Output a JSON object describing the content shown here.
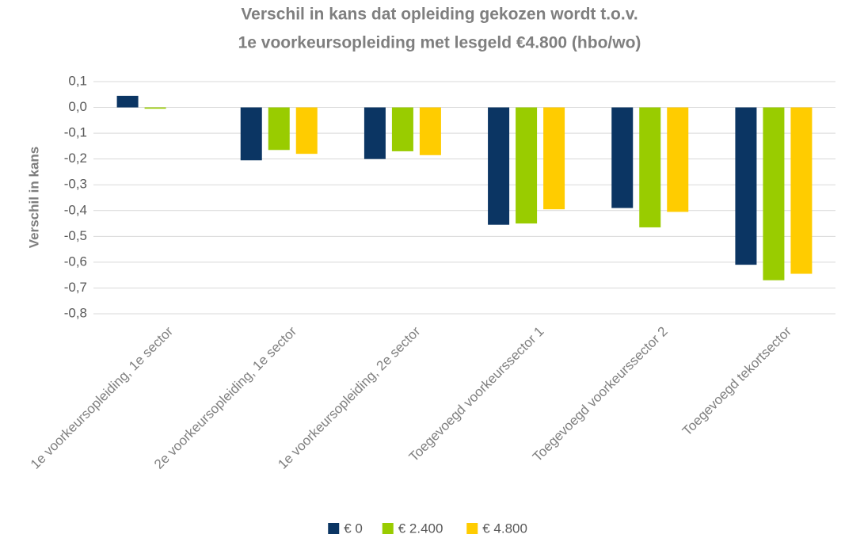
{
  "chart_data": {
    "type": "bar",
    "title": [
      "Verschil in kans dat opleiding gekozen wordt t.o.v.",
      "1e voorkeursopleiding  met lesgeld €4.800 (hbo/wo)"
    ],
    "y_label": "Verschil in kans",
    "categories": [
      "1e voorkeursopleiding, 1e sector",
      "2e voorkeursopleiding, 1e sector",
      "1e voorkeursopleiding, 2e sector",
      "Toegevoegd voorkeurssector 1",
      "Toegevoegd voorkeurssector 2",
      "Toegevoegd tekortsector"
    ],
    "series": [
      {
        "name": "€ 0",
        "color": "#0b3563",
        "values": [
          0.045,
          -0.205,
          -0.2,
          -0.455,
          -0.39,
          -0.61
        ]
      },
      {
        "name": "€ 2.400",
        "color": "#99cc00",
        "values": [
          -0.005,
          -0.165,
          -0.17,
          -0.45,
          -0.465,
          -0.67
        ]
      },
      {
        "name": "€ 4.800",
        "color": "#ffcc00",
        "values": [
          0,
          -0.18,
          -0.185,
          -0.395,
          -0.405,
          -0.645
        ]
      }
    ],
    "ylim": [
      -0.8,
      0.1
    ],
    "yticks": [
      {
        "value": 0.1,
        "label": "0,1"
      },
      {
        "value": 0,
        "label": "0,0"
      },
      {
        "value": -0.1,
        "label": "-0,1"
      },
      {
        "value": -0.2,
        "label": "-0,2"
      },
      {
        "value": -0.3,
        "label": "-0,3"
      },
      {
        "value": -0.4,
        "label": "-0,4"
      },
      {
        "value": -0.5,
        "label": "-0,5"
      },
      {
        "value": -0.6,
        "label": "-0,6"
      },
      {
        "value": -0.7,
        "label": "-0,7"
      },
      {
        "value": -0.8,
        "label": "-0,8"
      }
    ],
    "grid": true,
    "legend": "bottom"
  }
}
